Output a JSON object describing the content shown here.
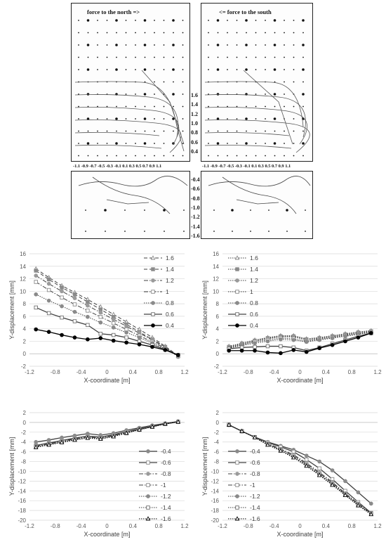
{
  "photo_panel": {
    "label_left": "force to the north =>",
    "label_right": "<= force to the south",
    "upper_levels": [
      "1.6",
      "1.4",
      "1.2",
      "1.0",
      "0.8",
      "0.6",
      "0.4"
    ],
    "lower_levels": [
      "-0.4",
      "-0.6",
      "-0.8",
      "-1.0",
      "-1.2",
      "-1.4",
      "-1.6"
    ],
    "x_ticks_text": "-1.1 -0.9 -0.7 -0.5 -0.3 -0.1 0.1 0.3 0.5 0.7 0.9 1.1"
  },
  "chart_data": [
    {
      "type": "line",
      "xlabel": "X-coordinate [m]",
      "ylabel": "Y-displacement [mm]",
      "xlim": [
        -1.2,
        1.2
      ],
      "ylim": [
        -2,
        16
      ],
      "xticks": [
        -1.2,
        -0.8,
        -0.4,
        0,
        0.4,
        0.8,
        1.2
      ],
      "yticks": [
        -2,
        0,
        2,
        4,
        6,
        8,
        10,
        12,
        14,
        16
      ],
      "grid": true,
      "legend": "top-right",
      "x": [
        -1.1,
        -0.9,
        -0.7,
        -0.5,
        -0.3,
        -0.1,
        0.1,
        0.3,
        0.5,
        0.7,
        0.9,
        1.1
      ],
      "series": [
        {
          "name": "1.6",
          "style": "dash-triangle",
          "values": [
            13.6,
            12.2,
            10.9,
            9.8,
            8.7,
            7.5,
            6.3,
            5.1,
            3.9,
            2.6,
            1.2,
            -0.3
          ]
        },
        {
          "name": "1.4",
          "style": "dash-square-filled",
          "values": [
            13.3,
            11.9,
            10.6,
            9.5,
            8.3,
            7.1,
            5.9,
            4.7,
            3.5,
            2.3,
            1.1,
            -0.4
          ]
        },
        {
          "name": "1.2",
          "style": "dashdot-circle-filled",
          "values": [
            12.5,
            11.2,
            10.0,
            8.9,
            7.7,
            6.6,
            5.5,
            4.4,
            3.3,
            2.2,
            1.0,
            -0.5
          ]
        },
        {
          "name": "1",
          "style": "dashdot-square-open",
          "values": [
            11.5,
            10.2,
            9.0,
            7.9,
            6.9,
            5.9,
            4.9,
            3.9,
            2.9,
            1.9,
            0.9,
            -0.4
          ]
        },
        {
          "name": "0.8",
          "style": "dot-circle-filled",
          "values": [
            9.5,
            8.5,
            7.6,
            6.7,
            5.9,
            5.0,
            4.2,
            3.4,
            2.6,
            1.7,
            0.8,
            -0.3
          ]
        },
        {
          "name": "0.6",
          "style": "solid-square-open",
          "values": [
            7.4,
            6.5,
            5.8,
            5.2,
            4.6,
            3.2,
            3.0,
            2.6,
            2.0,
            1.4,
            0.7,
            -0.2
          ]
        },
        {
          "name": "0.4",
          "style": "solid-circle-filled",
          "values": [
            3.9,
            3.5,
            3.0,
            2.6,
            2.3,
            2.5,
            2.1,
            1.8,
            1.5,
            1.1,
            0.6,
            -0.2
          ]
        }
      ]
    },
    {
      "type": "line",
      "xlabel": "X-coordinate [m]",
      "ylabel": "Y-displacement [mm]",
      "xlim": [
        -1.2,
        1.2
      ],
      "ylim": [
        -2,
        16
      ],
      "xticks": [
        -1.2,
        -0.8,
        -0.4,
        0,
        0.4,
        0.8,
        1.2
      ],
      "yticks": [
        -2,
        0,
        2,
        4,
        6,
        8,
        10,
        12,
        14,
        16
      ],
      "grid": true,
      "legend": "top-left",
      "x": [
        -1.1,
        -0.9,
        -0.7,
        -0.5,
        -0.3,
        -0.1,
        0.1,
        0.3,
        0.5,
        0.7,
        0.9,
        1.1
      ],
      "series": [
        {
          "name": "1.6",
          "style": "dot-triangle",
          "values": [
            1.2,
            1.7,
            2.2,
            2.6,
            2.9,
            2.9,
            2.4,
            2.6,
            2.9,
            3.2,
            3.5,
            3.7
          ]
        },
        {
          "name": "1.4",
          "style": "dot-square-filled",
          "values": [
            1.1,
            1.6,
            2.1,
            2.5,
            2.8,
            2.8,
            2.3,
            2.5,
            2.8,
            3.1,
            3.4,
            3.6
          ]
        },
        {
          "name": "1.2",
          "style": "dot-circle-filled",
          "values": [
            1.0,
            1.5,
            2.0,
            2.4,
            2.7,
            2.7,
            2.2,
            2.4,
            2.7,
            3.0,
            3.3,
            3.5
          ]
        },
        {
          "name": "1",
          "style": "dot-square-open",
          "values": [
            0.9,
            1.4,
            1.9,
            2.2,
            2.5,
            2.4,
            2.0,
            2.3,
            2.6,
            2.9,
            3.2,
            3.4
          ]
        },
        {
          "name": "0.8",
          "style": "dot-circle-filled",
          "values": [
            0.9,
            1.3,
            1.7,
            2.0,
            2.3,
            2.2,
            1.9,
            2.2,
            2.5,
            2.8,
            3.1,
            3.4
          ]
        },
        {
          "name": "0.6",
          "style": "solid-square-open",
          "values": [
            0.8,
            1.0,
            1.1,
            1.2,
            1.2,
            1.0,
            0.5,
            1.0,
            1.6,
            2.2,
            2.8,
            3.3
          ]
        },
        {
          "name": "0.4",
          "style": "solid-circle-filled",
          "values": [
            0.5,
            0.5,
            0.5,
            0.2,
            0.1,
            0.6,
            0.3,
            0.9,
            1.4,
            2.0,
            2.6,
            3.3
          ]
        }
      ]
    },
    {
      "type": "line",
      "xlabel": "X-coordinate [m]",
      "ylabel": "Y-displacement [mm]",
      "xlim": [
        -1.2,
        1.2
      ],
      "ylim": [
        -20,
        2
      ],
      "xticks": [
        -1.2,
        -0.8,
        -0.4,
        0,
        0.4,
        0.8,
        1.2
      ],
      "yticks": [
        -20,
        -18,
        -16,
        -14,
        -12,
        -10,
        -8,
        -6,
        -4,
        -2,
        0,
        2
      ],
      "grid": true,
      "legend": "bottom-right",
      "x": [
        -1.1,
        -0.9,
        -0.7,
        -0.5,
        -0.3,
        -0.1,
        0.1,
        0.3,
        0.5,
        0.7,
        0.9,
        1.1
      ],
      "series": [
        {
          "name": "-0.4",
          "style": "solid-circle-filled",
          "values": [
            -4.0,
            -3.6,
            -3.1,
            -2.7,
            -2.3,
            -2.6,
            -2.2,
            -1.6,
            -1.1,
            -0.6,
            -0.2,
            0.2
          ]
        },
        {
          "name": "-0.6",
          "style": "solid-square-open",
          "values": [
            -4.7,
            -4.2,
            -3.7,
            -3.2,
            -2.8,
            -3.0,
            -2.5,
            -1.9,
            -1.3,
            -0.8,
            -0.3,
            0.1
          ]
        },
        {
          "name": "-0.8",
          "style": "dashdot-circle-filled",
          "values": [
            -4.8,
            -4.3,
            -3.8,
            -3.3,
            -2.9,
            -3.1,
            -2.6,
            -2.0,
            -1.4,
            -0.8,
            -0.3,
            0.1
          ]
        },
        {
          "name": "-1",
          "style": "dashdot-square-open",
          "values": [
            -4.9,
            -4.4,
            -3.9,
            -3.4,
            -3.0,
            -3.2,
            -2.7,
            -2.1,
            -1.4,
            -0.9,
            -0.3,
            0.1
          ]
        },
        {
          "name": "-1.2",
          "style": "dot-circle-filled",
          "values": [
            -5.0,
            -4.5,
            -4.0,
            -3.5,
            -3.1,
            -3.3,
            -2.8,
            -2.1,
            -1.5,
            -0.9,
            -0.3,
            0.1
          ]
        },
        {
          "name": "-1.4",
          "style": "dot-square-open",
          "values": [
            -5.0,
            -4.5,
            -4.0,
            -3.5,
            -3.1,
            -3.3,
            -2.8,
            -2.2,
            -1.5,
            -0.9,
            -0.3,
            0.1
          ]
        },
        {
          "name": "-1.6",
          "style": "dot-triangle",
          "values": [
            -5.1,
            -4.6,
            -4.1,
            -3.6,
            -3.2,
            -3.4,
            -2.9,
            -2.2,
            -1.5,
            -0.9,
            -0.3,
            0.1
          ]
        }
      ]
    },
    {
      "type": "line",
      "xlabel": "X-coordinate [m]",
      "ylabel": "Y-displacement [mm]",
      "xlim": [
        -1.2,
        1.2
      ],
      "ylim": [
        -20,
        2
      ],
      "xticks": [
        -1.2,
        -0.8,
        -0.4,
        0,
        0.4,
        0.8,
        1.2
      ],
      "yticks": [
        -20,
        -18,
        -16,
        -14,
        -12,
        -10,
        -8,
        -6,
        -4,
        -2,
        0,
        2
      ],
      "grid": true,
      "legend": "top-right",
      "x": [
        -1.1,
        -0.9,
        -0.7,
        -0.5,
        -0.3,
        -0.1,
        0.1,
        0.3,
        0.5,
        0.7,
        0.9,
        1.1
      ],
      "series": [
        {
          "name": "-0.4",
          "style": "solid-circle-filled",
          "values": [
            -0.5,
            -1.8,
            -3.0,
            -4.0,
            -4.8,
            -5.6,
            -6.8,
            -8.0,
            -9.8,
            -12.0,
            -14.3,
            -16.6
          ]
        },
        {
          "name": "-0.6",
          "style": "solid-square-open",
          "values": [
            -0.5,
            -1.8,
            -3.0,
            -4.1,
            -5.0,
            -6.0,
            -7.6,
            -9.4,
            -11.6,
            -14.0,
            -16.3,
            -18.5
          ]
        },
        {
          "name": "-0.8",
          "style": "dashdot-circle-filled",
          "values": [
            -0.5,
            -1.8,
            -3.0,
            -4.3,
            -5.4,
            -6.6,
            -8.3,
            -10.2,
            -12.2,
            -14.5,
            -16.6,
            -18.6
          ]
        },
        {
          "name": "-1",
          "style": "dashdot-square-open",
          "values": [
            -0.5,
            -1.8,
            -3.0,
            -4.4,
            -5.5,
            -6.8,
            -8.5,
            -10.4,
            -12.4,
            -14.6,
            -16.7,
            -18.6
          ]
        },
        {
          "name": "-1.2",
          "style": "dot-circle-filled",
          "values": [
            -0.5,
            -1.8,
            -3.0,
            -4.5,
            -5.6,
            -7.0,
            -8.7,
            -10.6,
            -12.6,
            -14.7,
            -16.8,
            -18.7
          ]
        },
        {
          "name": "-1.4",
          "style": "dot-square-open",
          "values": [
            -0.5,
            -1.8,
            -3.0,
            -4.5,
            -5.7,
            -7.1,
            -8.8,
            -10.7,
            -12.7,
            -14.8,
            -16.9,
            -18.7
          ]
        },
        {
          "name": "-1.6",
          "style": "dot-triangle",
          "values": [
            -0.5,
            -1.8,
            -3.1,
            -4.6,
            -5.8,
            -7.2,
            -8.9,
            -10.8,
            -12.8,
            -14.9,
            -17.0,
            -18.8
          ]
        }
      ]
    }
  ]
}
